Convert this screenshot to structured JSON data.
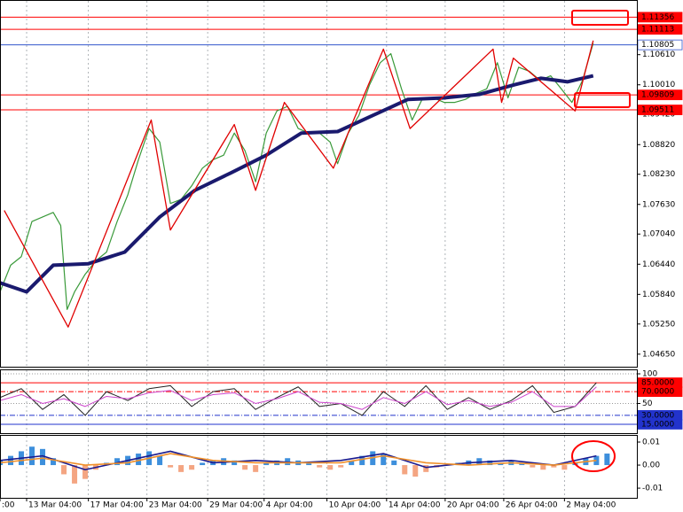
{
  "chart_data": [
    {
      "type": "line",
      "xlim": [
        0,
        59.8
      ],
      "ylim": [
        1.044,
        1.1168
      ],
      "yticks": [
        {
          "value": 1.1061,
          "label": "1.10610"
        },
        {
          "value": 1.1001,
          "label": "1.10010"
        },
        {
          "value": 1.0942,
          "label": "1.09420"
        },
        {
          "value": 1.0882,
          "label": "1.08820"
        },
        {
          "value": 1.0823,
          "label": "1.08230"
        },
        {
          "value": 1.0763,
          "label": "1.07630"
        },
        {
          "value": 1.0704,
          "label": "1.07040"
        },
        {
          "value": 1.0644,
          "label": "1.06440"
        },
        {
          "value": 1.0584,
          "label": "1.05840"
        },
        {
          "value": 1.0525,
          "label": "1.05250"
        },
        {
          "value": 1.0465,
          "label": "1.04650"
        }
      ],
      "levels": [
        {
          "value": 1.11356,
          "color": "#ff0000",
          "box_color": "#ff0000",
          "text_color": "#ffffff"
        },
        {
          "value": 1.11113,
          "color": "#ff0000",
          "box_color": "#ff0000",
          "text_color": "#ffffff"
        },
        {
          "value": 1.10805,
          "color": "#3355cc",
          "box_color": "#ffffff",
          "text_color": "#000000"
        },
        {
          "value": 1.09809,
          "color": "#ff0000",
          "box_color": "#ff0000",
          "text_color": "#ffffff"
        },
        {
          "value": 1.09511,
          "color": "#ff0000",
          "box_color": "#ff0000",
          "text_color": "#ffffff"
        }
      ],
      "series": [
        {
          "color": "#3a9a3a",
          "width": 1.2,
          "x": [
            0,
            1,
            2,
            3,
            4,
            5,
            5.7,
            6.3,
            7,
            8,
            9,
            10,
            11,
            12,
            13,
            14,
            15,
            16,
            17,
            18,
            19,
            20,
            21,
            22,
            23,
            24,
            25,
            26,
            27,
            28,
            29,
            30,
            31,
            31.7,
            32.7,
            33.7,
            34.7,
            35.7,
            36.7,
            37.7,
            38.7,
            39.7,
            40.7,
            41.7,
            42.7,
            43.7,
            44.7,
            45.7,
            46.7,
            47.7,
            48.7,
            49.7,
            50.7,
            51.7,
            52.7,
            53.7,
            54.7,
            55.7
          ],
          "values": [
            1.0589,
            1.0642,
            1.0659,
            1.0729,
            1.0738,
            1.0747,
            1.0721,
            1.0554,
            1.0589,
            1.0624,
            1.0651,
            1.0668,
            1.0729,
            1.0782,
            1.0852,
            1.0914,
            1.0887,
            1.0765,
            1.0773,
            1.08,
            1.0835,
            1.0852,
            1.0861,
            1.0905,
            1.087,
            1.0808,
            1.0905,
            1.0949,
            1.0958,
            1.0914,
            1.0905,
            1.0905,
            1.0887,
            1.0844,
            1.0905,
            1.094,
            1.1001,
            1.1045,
            1.1063,
            1.0993,
            1.0931,
            1.0975,
            1.0975,
            1.0966,
            1.0966,
            1.0972,
            1.0984,
            1.0993,
            1.1045,
            1.0975,
            1.1036,
            1.1028,
            1.101,
            1.1019,
            1.0993,
            1.0966,
            1.101,
            1.1084
          ]
        },
        {
          "color": "#1a1a6e",
          "width": 4,
          "x": [
            0,
            2.5,
            5,
            8.3,
            11.7,
            15,
            18.3,
            21.7,
            25,
            28.3,
            31.7,
            35,
            38.3,
            41.7,
            45,
            48.3,
            50.8,
            53.3,
            55.7
          ],
          "values": [
            1.0607,
            1.0589,
            1.0642,
            1.0645,
            1.0668,
            1.0738,
            1.0791,
            1.0826,
            1.0861,
            1.0905,
            1.0908,
            1.094,
            1.0972,
            1.0975,
            1.0982,
            1.1001,
            1.1014,
            1.1007,
            1.1019
          ]
        },
        {
          "color": "#e00000",
          "width": 1.3,
          "x": [
            0.4,
            6.4,
            14.2,
            16,
            22,
            24,
            26.7,
            31.3,
            36,
            38.5,
            46.3,
            47.1,
            48.2,
            54,
            55.7
          ],
          "values": [
            1.0751,
            1.0519,
            1.0931,
            1.0712,
            1.0922,
            1.0791,
            1.0966,
            1.0835,
            1.1072,
            1.0914,
            1.1072,
            1.0966,
            1.1054,
            1.0949,
            1.1089
          ]
        }
      ]
    },
    {
      "type": "line",
      "xlim": [
        0,
        59.8
      ],
      "ylim": [
        0,
        106
      ],
      "yticks": [
        100,
        50
      ],
      "levels": [
        {
          "value": 85,
          "label": "85.0000",
          "color": "#ff0000",
          "style": "solid",
          "box_color": "#ff0000",
          "text_color": "#ffffff"
        },
        {
          "value": 70,
          "label": "70.0000",
          "color": "#ff0000",
          "style": "dashdot",
          "box_color": "#ff0000",
          "text_color": "#ffffff"
        },
        {
          "value": 30,
          "label": "30.0000",
          "color": "#2233cc",
          "style": "dashdot",
          "box_color": "#2233cc",
          "text_color": "#ffffff"
        },
        {
          "value": 15,
          "label": "15.0000",
          "color": "#2233cc",
          "style": "solid",
          "box_color": "#2233cc",
          "text_color": "#ffffff"
        }
      ],
      "series": [
        {
          "color": "#222222",
          "width": 1,
          "x": [
            0,
            2,
            4,
            6,
            8,
            10,
            12,
            14,
            16,
            18,
            20,
            22,
            24,
            26,
            28,
            30,
            32,
            34,
            36,
            38,
            40,
            42,
            44,
            46,
            48,
            50,
            52,
            54,
            56
          ],
          "values": [
            60,
            75,
            40,
            65,
            30,
            70,
            55,
            75,
            80,
            45,
            70,
            75,
            40,
            60,
            78,
            45,
            50,
            30,
            70,
            45,
            80,
            40,
            60,
            40,
            55,
            80,
            35,
            45,
            85
          ]
        },
        {
          "color": "#cc44cc",
          "width": 1,
          "x": [
            0,
            2,
            4,
            6,
            8,
            10,
            12,
            14,
            16,
            18,
            20,
            22,
            24,
            26,
            28,
            30,
            32,
            34,
            36,
            38,
            40,
            42,
            44,
            46,
            48,
            50,
            52,
            54,
            56
          ],
          "values": [
            55,
            65,
            50,
            58,
            45,
            62,
            58,
            68,
            72,
            55,
            65,
            68,
            50,
            58,
            70,
            52,
            50,
            40,
            60,
            50,
            70,
            48,
            55,
            45,
            52,
            70,
            45,
            45,
            78
          ]
        }
      ]
    },
    {
      "type": "bar",
      "xlim": [
        0,
        59.8
      ],
      "ylim": [
        -0.0142,
        0.0127
      ],
      "yticks": [
        0.01,
        {
          "value": 0,
          "label": "0.00"
        },
        -0.01
      ],
      "xticks": [
        {
          "value": 0,
          "label": ":00"
        },
        {
          "value": 2.5,
          "label": "13 Mar 04:00"
        },
        {
          "value": 8.3,
          "label": "17 Mar 04:00"
        },
        {
          "value": 13.8,
          "label": "23 Mar 04:00"
        },
        {
          "value": 19.5,
          "label": "29 Mar 04:00"
        },
        {
          "value": 24.8,
          "label": "4 Apr 04:00"
        },
        {
          "value": 30.7,
          "label": "10 Apr 04:00"
        },
        {
          "value": 36.3,
          "label": "14 Apr 04:00"
        },
        {
          "value": 41.8,
          "label": "20 Apr 04:00"
        },
        {
          "value": 47.3,
          "label": "26 Apr 04:00"
        },
        {
          "value": 53,
          "label": "2 May 04:00"
        }
      ],
      "series": [
        {
          "type": "bar",
          "color": "#3d8fdc",
          "negative_color": "#f4a582",
          "x": [
            0,
            1,
            2,
            3,
            4,
            5,
            6,
            7,
            8,
            9,
            10,
            11,
            12,
            13,
            14,
            15,
            16,
            17,
            18,
            19,
            20,
            21,
            22,
            23,
            24,
            25,
            26,
            27,
            28,
            29,
            30,
            31,
            32,
            33,
            34,
            35,
            36,
            37,
            38,
            39,
            40,
            41,
            42,
            43,
            44,
            45,
            46,
            47,
            48,
            49,
            50,
            51,
            52,
            53,
            54,
            55,
            56,
            57
          ],
          "values": [
            0.002,
            0.004,
            0.006,
            0.008,
            0.007,
            0.003,
            -0.004,
            -0.008,
            -0.006,
            -0.002,
            0.001,
            0.003,
            0.004,
            0.005,
            0.006,
            0.004,
            -0.001,
            -0.003,
            -0.002,
            0.001,
            0.002,
            0.003,
            0.002,
            -0.002,
            -0.003,
            0.001,
            0.002,
            0.003,
            0.002,
            0.001,
            -0.001,
            -0.002,
            -0.001,
            0.002,
            0.004,
            0.006,
            0.005,
            0.002,
            -0.004,
            -0.005,
            -0.003,
            -0.001,
            0,
            0.001,
            0.002,
            0.003,
            0.002,
            0.001,
            0.002,
            0.001,
            -0.001,
            -0.002,
            -0.001,
            -0.002,
            0.001,
            0.003,
            0.004,
            0.005
          ]
        },
        {
          "type": "line",
          "color": "#1a1a8e",
          "width": 1.6,
          "x": [
            0,
            4,
            8,
            12,
            16,
            20,
            24,
            28,
            32,
            36,
            40,
            44,
            48,
            52,
            56
          ],
          "values": [
            0.002,
            0.004,
            -0.002,
            0.002,
            0.006,
            0.001,
            0.002,
            0.001,
            0.002,
            0.005,
            -0.001,
            0.001,
            0.002,
            0,
            0.004
          ]
        },
        {
          "type": "line",
          "color": "#f0902a",
          "width": 1.6,
          "x": [
            0,
            4,
            8,
            12,
            16,
            20,
            24,
            28,
            32,
            36,
            40,
            44,
            48,
            52,
            56
          ],
          "values": [
            0.001,
            0.003,
            0,
            0.001,
            0.005,
            0.002,
            0.001,
            0.001,
            0.001,
            0.004,
            0.001,
            0,
            0.001,
            0,
            0.002
          ]
        }
      ]
    }
  ]
}
